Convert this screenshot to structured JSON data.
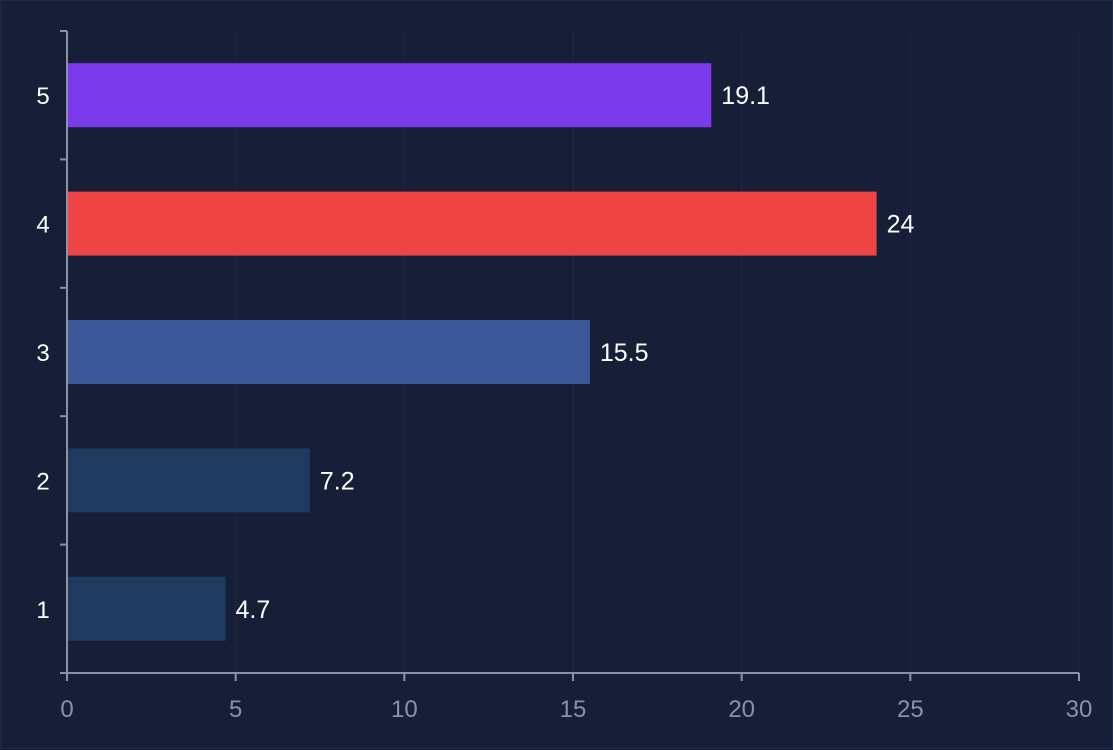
{
  "chart_data": {
    "type": "bar",
    "orientation": "horizontal",
    "categories": [
      "1",
      "2",
      "3",
      "4",
      "5"
    ],
    "values": [
      4.7,
      7.2,
      15.5,
      24,
      19.1
    ],
    "bar_colors": [
      "#1f3a5f",
      "#1f3a5f",
      "#3b5998",
      "#ef4444",
      "#7c3aed"
    ],
    "xlim": [
      0,
      30
    ],
    "x_ticks": [
      0,
      5,
      10,
      15,
      20,
      25,
      30
    ],
    "title": "",
    "xlabel": "",
    "ylabel": "",
    "grid": true,
    "data_labels": true
  },
  "colors": {
    "background": "#161e38",
    "axis": "#8a93a6",
    "grid": "#1f2942",
    "label": "#ffffff"
  }
}
